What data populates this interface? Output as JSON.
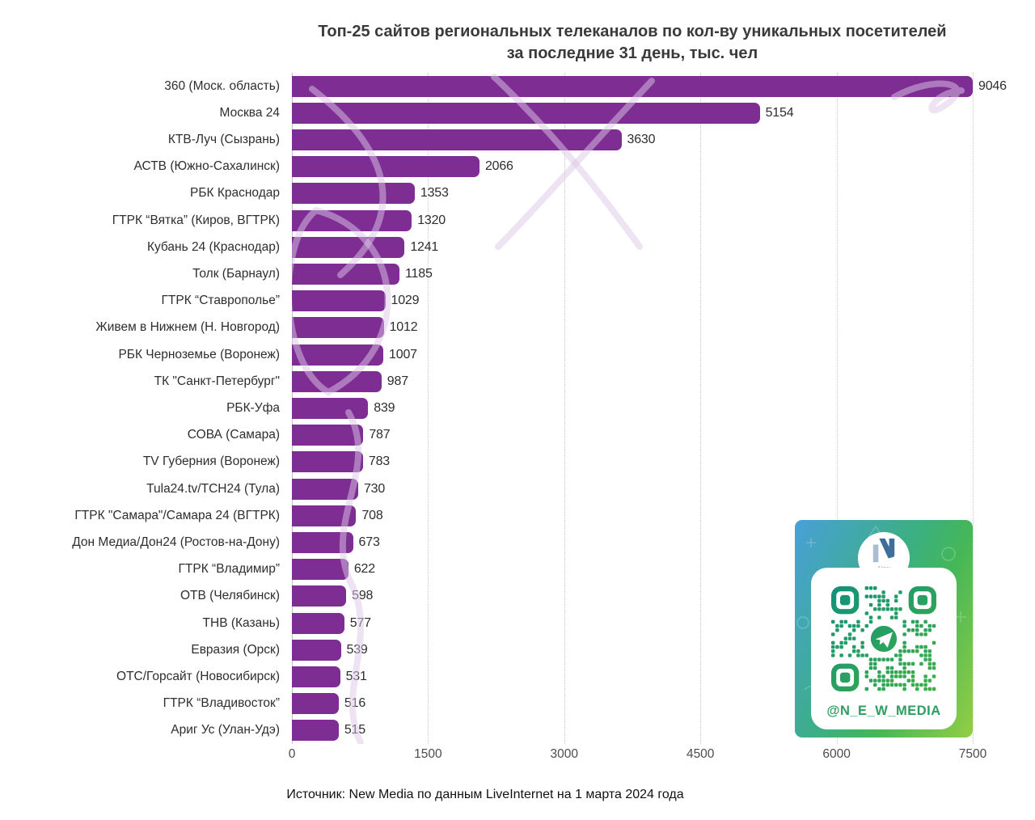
{
  "title": {
    "line1": "Топ-25 сайтов региональных телеканалов по кол-ву уникальных посетителей",
    "line2": "за последние 31 день, тыс. чел"
  },
  "source": "Источник: New Media по данным LiveInternet на 1 марта 2024 года",
  "qr_card": {
    "handle": "@N_E_W_MEDIA",
    "logo_line1": "New",
    "logo_line2": "Media"
  },
  "colors": {
    "bar": "#7E2E92",
    "title_text": "#3A3A3A",
    "label_text": "#2E2E2E",
    "axis_text": "#4C4C4C",
    "grid": "#CCCCCC",
    "card_gradient_start": "#48A0D8",
    "card_gradient_mid": "#3BB07C",
    "card_gradient_end": "#93CE45",
    "qr_teal": "#12917C",
    "qr_green": "#3FB044",
    "handle_green": "#2D9E62",
    "logo_dark_blue": "#3F6F99",
    "logo_light_blue": "#A8BFD2"
  },
  "chart_data": {
    "type": "bar",
    "orientation": "horizontal",
    "title": "Топ-25 сайтов региональных телеканалов по кол-ву уникальных посетителей за последние 31 день, тыс. чел",
    "categories": [
      "360 (Моск. область)",
      "Москва 24",
      "КТВ-Луч (Сызрань)",
      "АСТВ (Южно-Сахалинск)",
      "РБК Краснодар",
      "ГТРК “Вятка” (Киров, ВГТРК)",
      "Кубань 24 (Краснодар)",
      "Толк (Барнаул)",
      "ГТРК “Ставрополье”",
      "Живем в Нижнем (Н. Новгород)",
      "РБК Черноземье (Воронеж)",
      "ТК \"Санкт-Петербург\"",
      "РБК-Уфа",
      "СОВА (Самара)",
      "TV Губерния (Воронеж)",
      "Tula24.tv/ТСН24 (Тула)",
      "ГТРК \"Самара\"/Самара 24 (ВГТРК)",
      "Дон Медиа/Дон24 (Ростов-на-Дону)",
      "ГТРК “Владимир”",
      "ОТВ (Челябинск)",
      "ТНВ (Казань)",
      "Евразия (Орск)",
      "ОТС/Горсайт (Новосибирск)",
      "ГТРК “Владивосток”",
      "Ариг Ус (Улан-Удэ)"
    ],
    "values": [
      9046,
      5154,
      3630,
      2066,
      1353,
      1320,
      1241,
      1185,
      1029,
      1012,
      1007,
      987,
      839,
      787,
      783,
      730,
      708,
      673,
      622,
      598,
      577,
      539,
      531,
      516,
      515
    ],
    "value_labels": true,
    "xticks": [
      0,
      1500,
      3000,
      4500,
      6000,
      7500
    ],
    "xlim": [
      0,
      7500
    ],
    "xlabel": "",
    "ylabel": "",
    "grid": "vertical-dotted",
    "legend": false,
    "bar_color": "#7E2E92",
    "clip_note": "first bar (9046) exceeds axis max 7500 and is clipped at the plot edge"
  }
}
